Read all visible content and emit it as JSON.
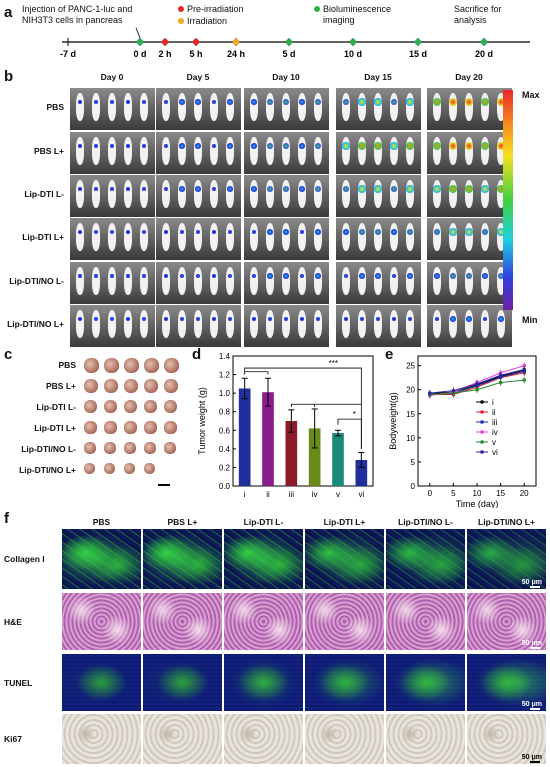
{
  "panel_a": {
    "label": "a",
    "injection_text": "Injection of PANC-1-luc and NIH3T3 cells in pancreas",
    "legend": [
      {
        "text": "Pre-irradiation",
        "color": "#e8262a"
      },
      {
        "text": "Irradiation",
        "color": "#f5a623"
      },
      {
        "text": "Bioluminescence imaging",
        "color": "#2bb24c"
      }
    ],
    "sacrifice_text": "Sacrifice for analysis",
    "timepoints": [
      "-7 d",
      "0 d",
      "2 h",
      "5 h",
      "24 h",
      "5 d",
      "10 d",
      "15 d",
      "20 d"
    ]
  },
  "panel_b": {
    "label": "b",
    "days": [
      "Day 0",
      "Day 5",
      "Day 10",
      "Day 15",
      "Day 20"
    ],
    "groups": [
      "PBS",
      "PBS L+",
      "Lip-DTI L-",
      "Lip-DTI L+",
      "Lip-DTI/NO L-",
      "Lip-DTI/NO L+"
    ],
    "colorbar_max": "Max",
    "colorbar_min": "Min"
  },
  "panel_c": {
    "label": "c",
    "groups": [
      "PBS",
      "PBS L+",
      "Lip-DTI L-",
      "Lip-DTI L+",
      "Lip-DTI/NO L-",
      "Lip-DTI/NO L+"
    ]
  },
  "panel_d": {
    "label": "d",
    "ylabel": "Tumor weight (g)",
    "sig_labels": [
      "***",
      "*"
    ],
    "chart_data": {
      "type": "bar",
      "categories": [
        "i",
        "ii",
        "iii",
        "iv",
        "v",
        "vi"
      ],
      "values": [
        1.05,
        1.01,
        0.7,
        0.62,
        0.57,
        0.28
      ],
      "errors": [
        0.11,
        0.15,
        0.12,
        0.21,
        0.03,
        0.08
      ],
      "colors": [
        "#1f2f9c",
        "#8a1d8a",
        "#8b1a2a",
        "#6b8a1a",
        "#1a8a7a",
        "#1f2f9c"
      ],
      "ylim": [
        0,
        1.4
      ],
      "yticks": [
        "0.0",
        "0.2",
        "0.4",
        "0.6",
        "0.8",
        "1.0",
        "1.2",
        "1.4"
      ]
    }
  },
  "panel_e": {
    "label": "e",
    "xlabel": "Time (day)",
    "ylabel": "Bodyweight(g)",
    "chart_data": {
      "type": "line",
      "x": [
        0,
        5,
        10,
        15,
        20
      ],
      "xticks": [
        "0",
        "5",
        "10",
        "15",
        "20"
      ],
      "yticks": [
        "0",
        "5",
        "10",
        "15",
        "20",
        "25"
      ],
      "ylim": [
        0,
        27
      ],
      "series": [
        {
          "name": "i",
          "color": "#000000",
          "values": [
            19.2,
            19.5,
            21.0,
            22.8,
            24.0
          ]
        },
        {
          "name": "ii",
          "color": "#e8262a",
          "values": [
            19.0,
            19.0,
            20.5,
            22.5,
            23.5
          ]
        },
        {
          "name": "iii",
          "color": "#1f2fb0",
          "values": [
            19.0,
            19.2,
            20.8,
            22.6,
            23.8
          ]
        },
        {
          "name": "iv",
          "color": "#e040e0",
          "values": [
            18.8,
            19.5,
            21.5,
            23.5,
            25.0
          ]
        },
        {
          "name": "v",
          "color": "#2a8a2a",
          "values": [
            19.0,
            19.3,
            20.0,
            21.5,
            22.0
          ]
        },
        {
          "name": "vi",
          "color": "#2a2aa0",
          "values": [
            19.3,
            19.8,
            21.2,
            23.0,
            24.2
          ]
        }
      ]
    }
  },
  "panel_f": {
    "label": "f",
    "columns": [
      "PBS",
      "PBS L+",
      "Lip-DTI L-",
      "Lip-DTI L+",
      "Lip-DTI/NO L-",
      "Lip-DTI/NO L+"
    ],
    "rows": [
      "Collagen I",
      "H&E",
      "TUNEL",
      "Ki67"
    ],
    "scale_bar": "50 μm"
  }
}
